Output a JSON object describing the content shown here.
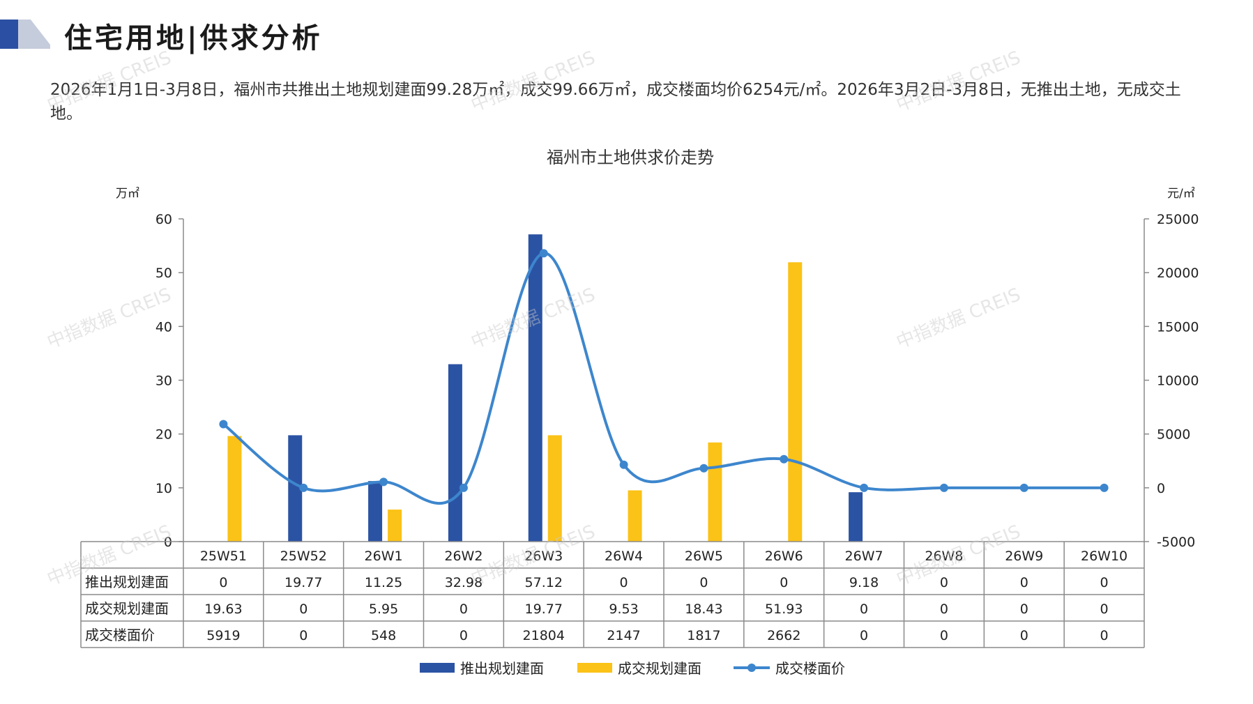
{
  "page": {
    "title": "住宅用地|供求分析",
    "summary": "2026年1月1日-3月8日，福州市共推出土地规划建面99.28万㎡，成交99.66万㎡，成交楼面均价6254元/㎡。2026年3月2日-3月8日，无推出土地，无成交土地。",
    "watermark": "中指数据 CREIS"
  },
  "colors": {
    "supply": "#2b53a4",
    "deal": "#fbc217",
    "price": "#3d86cd",
    "accent_dark": "#2b4fa2",
    "accent_light": "#c5ccdb"
  },
  "chart_data": {
    "type": "bar",
    "title": "福州市土地供求价走势",
    "y_left_unit": "万㎡",
    "y_right_unit": "元/㎡",
    "categories": [
      "25W51",
      "25W52",
      "26W1",
      "26W2",
      "26W3",
      "26W4",
      "26W5",
      "26W6",
      "26W7",
      "26W8",
      "26W9",
      "26W10"
    ],
    "ylim_left": [
      0,
      60
    ],
    "yticks_left": [
      "60",
      "50",
      "40",
      "30",
      "20",
      "10",
      "0"
    ],
    "ylim_right": [
      -5000,
      25000
    ],
    "yticks_right": [
      "25000",
      "20000",
      "15000",
      "10000",
      "5000",
      "0",
      "-5000"
    ],
    "series": [
      {
        "name": "推出规划建面",
        "kind": "bar",
        "axis": "left",
        "color": "#2b53a4",
        "values": [
          0,
          19.77,
          11.25,
          32.98,
          57.12,
          0,
          0,
          0,
          9.18,
          0,
          0,
          0
        ],
        "labels": [
          "0",
          "19.77",
          "11.25",
          "32.98",
          "57.12",
          "0",
          "0",
          "0",
          "9.18",
          "0",
          "0",
          "0"
        ]
      },
      {
        "name": "成交规划建面",
        "kind": "bar",
        "axis": "left",
        "color": "#fbc217",
        "values": [
          19.63,
          0,
          5.95,
          0,
          19.77,
          9.53,
          18.43,
          51.93,
          0,
          0,
          0,
          0
        ],
        "labels": [
          "19.63",
          "0",
          "5.95",
          "0",
          "19.77",
          "9.53",
          "18.43",
          "51.93",
          "0",
          "0",
          "0",
          "0"
        ]
      },
      {
        "name": "成交楼面价",
        "kind": "line",
        "axis": "right",
        "color": "#3d86cd",
        "values": [
          5919,
          0,
          548,
          0,
          21804,
          2147,
          1817,
          2662,
          0,
          0,
          0,
          0
        ],
        "labels": [
          "5919",
          "0",
          "548",
          "0",
          "21804",
          "2147",
          "1817",
          "2662",
          "0",
          "0",
          "0",
          "0"
        ]
      }
    ],
    "grid": false,
    "legend": "bottom",
    "data_table": true
  }
}
